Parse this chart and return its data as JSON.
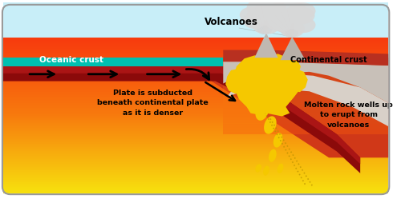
{
  "sky_color": "#c8eef8",
  "mantle_orange": "#f57010",
  "mantle_yellow": "#f5e010",
  "oceanic_crust_color": "#8b0a0a",
  "ocean_water_color": "#00c0b0",
  "continental_crust_color": "#cc3820",
  "mantle_red": "#e03010",
  "gray_cone": "#b0b0b0",
  "gray_dark": "#909090",
  "cloud_color": "#d8d8d8",
  "magma_yellow": "#f5c800",
  "magma_outline": "#d4a000",
  "label_oceanic": "Oceanic crust",
  "label_continental": "Continental crust",
  "label_volcanoes": "Volcanoes",
  "label_subduction": "Plate is subducted\nbeneath continental plate\nas it is denser",
  "label_molten": "Molten rock wells up\nto erupt from\nvolcanoes",
  "border_color": "#999999"
}
